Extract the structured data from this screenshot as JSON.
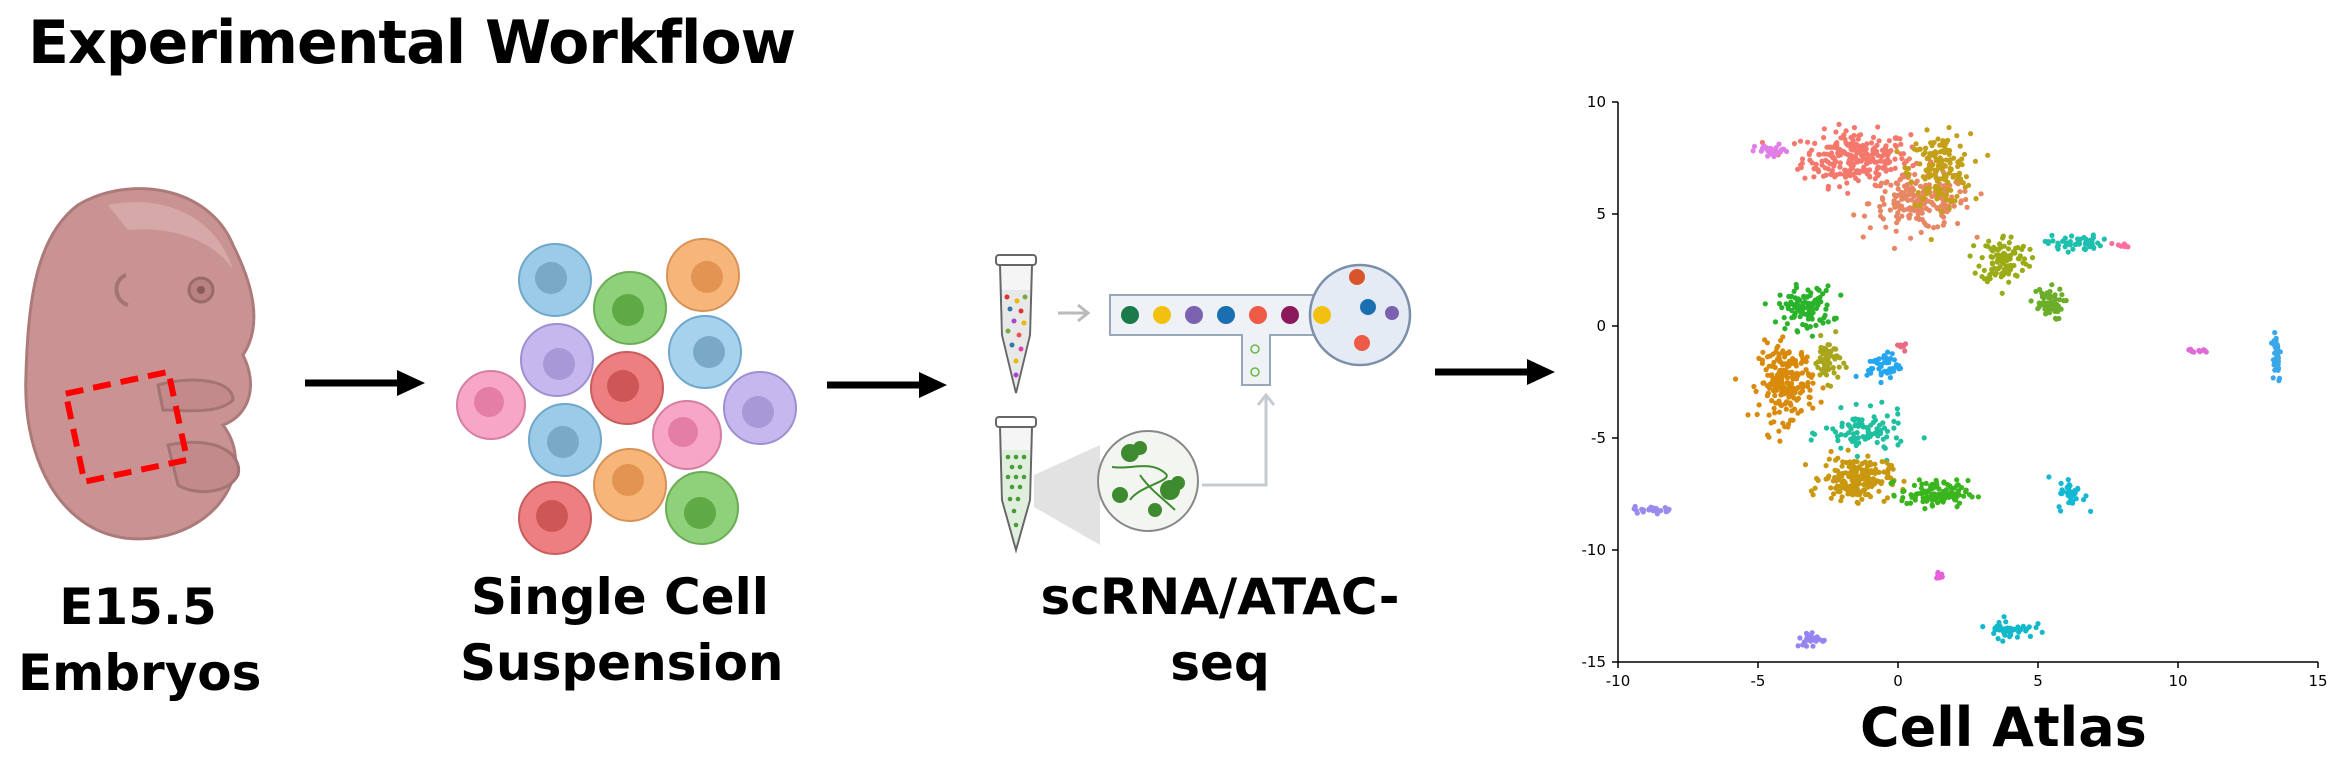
{
  "title": "Experimental Workflow",
  "stages": [
    {
      "line1": "E15.5",
      "line2": "Embryos"
    },
    {
      "line1": "Single Cell",
      "line2": "Suspension"
    },
    {
      "line1": "scRNA/ATAC-seq",
      "line2": ""
    }
  ],
  "atlas_label": "Cell Atlas",
  "colors": {
    "embryo": "#c99393",
    "dashed_box": "#ff0000",
    "arrow": "#000000"
  },
  "chart_data": {
    "type": "scatter",
    "title": "",
    "xlabel": "",
    "ylabel": "",
    "xlim": [
      -10,
      15
    ],
    "ylim": [
      -15,
      10
    ],
    "xticks": [
      -10,
      -5,
      0,
      5,
      10,
      15
    ],
    "yticks": [
      10,
      5,
      0,
      -5,
      -10,
      -15
    ],
    "grid": false,
    "clusters": [
      {
        "color": "#f4786c",
        "cx": -1.5,
        "cy": 7.5,
        "sx": 1.6,
        "sy": 1.0,
        "n": 260
      },
      {
        "color": "#e88764",
        "cx": 0.8,
        "cy": 5.5,
        "sx": 1.5,
        "sy": 1.0,
        "n": 200
      },
      {
        "color": "#c3a017",
        "cx": 1.5,
        "cy": 7.0,
        "sx": 0.9,
        "sy": 1.3,
        "n": 160
      },
      {
        "color": "#9aab16",
        "cx": 3.8,
        "cy": 3.0,
        "sx": 0.7,
        "sy": 0.9,
        "n": 110
      },
      {
        "color": "#6cae2a",
        "cx": 5.3,
        "cy": 1.0,
        "sx": 0.5,
        "sy": 0.6,
        "n": 60
      },
      {
        "color": "#1ebfae",
        "cx": 6.3,
        "cy": 3.7,
        "sx": 0.8,
        "sy": 0.3,
        "n": 50
      },
      {
        "color": "#ff6fa0",
        "cx": 8.0,
        "cy": 3.6,
        "sx": 0.3,
        "sy": 0.1,
        "n": 10
      },
      {
        "color": "#e27ee8",
        "cx": -4.5,
        "cy": 7.8,
        "sx": 0.5,
        "sy": 0.25,
        "n": 25
      },
      {
        "color": "#2ab32a",
        "cx": -3.3,
        "cy": 0.8,
        "sx": 0.8,
        "sy": 0.8,
        "n": 110
      },
      {
        "color": "#d98a0a",
        "cx": -4.0,
        "cy": -2.5,
        "sx": 0.8,
        "sy": 1.4,
        "n": 210
      },
      {
        "color": "#a9a61e",
        "cx": -2.5,
        "cy": -1.5,
        "sx": 0.4,
        "sy": 0.8,
        "n": 60
      },
      {
        "color": "#1fbfa0",
        "cx": -1.2,
        "cy": -4.8,
        "sx": 1.2,
        "sy": 0.8,
        "n": 90
      },
      {
        "color": "#c9980e",
        "cx": -1.5,
        "cy": -6.8,
        "sx": 1.0,
        "sy": 0.8,
        "n": 180
      },
      {
        "color": "#3ab51e",
        "cx": 1.3,
        "cy": -7.5,
        "sx": 1.0,
        "sy": 0.5,
        "n": 110
      },
      {
        "color": "#24a6f0",
        "cx": -0.5,
        "cy": -1.8,
        "sx": 0.5,
        "sy": 0.5,
        "n": 50
      },
      {
        "color": "#e86b84",
        "cx": 0.3,
        "cy": -0.9,
        "sx": 0.2,
        "sy": 0.15,
        "n": 8
      },
      {
        "color": "#e06bd6",
        "cx": 10.7,
        "cy": -1.1,
        "sx": 0.4,
        "sy": 0.1,
        "n": 12
      },
      {
        "color": "#3aa7e8",
        "cx": 13.5,
        "cy": -1.3,
        "sx": 0.15,
        "sy": 1.0,
        "n": 40
      },
      {
        "color": "#9b8aee",
        "cx": -8.7,
        "cy": -8.2,
        "sx": 0.6,
        "sy": 0.12,
        "n": 30
      },
      {
        "color": "#12b8d4",
        "cx": 6.2,
        "cy": -7.5,
        "sx": 0.4,
        "sy": 0.6,
        "n": 30
      },
      {
        "color": "#e75fd8",
        "cx": 1.5,
        "cy": -11.1,
        "sx": 0.15,
        "sy": 0.15,
        "n": 8
      },
      {
        "color": "#9485f0",
        "cx": -3.1,
        "cy": -14.0,
        "sx": 0.45,
        "sy": 0.3,
        "n": 30
      },
      {
        "color": "#10b8c8",
        "cx": 4.0,
        "cy": -13.5,
        "sx": 0.7,
        "sy": 0.35,
        "n": 45
      }
    ]
  }
}
